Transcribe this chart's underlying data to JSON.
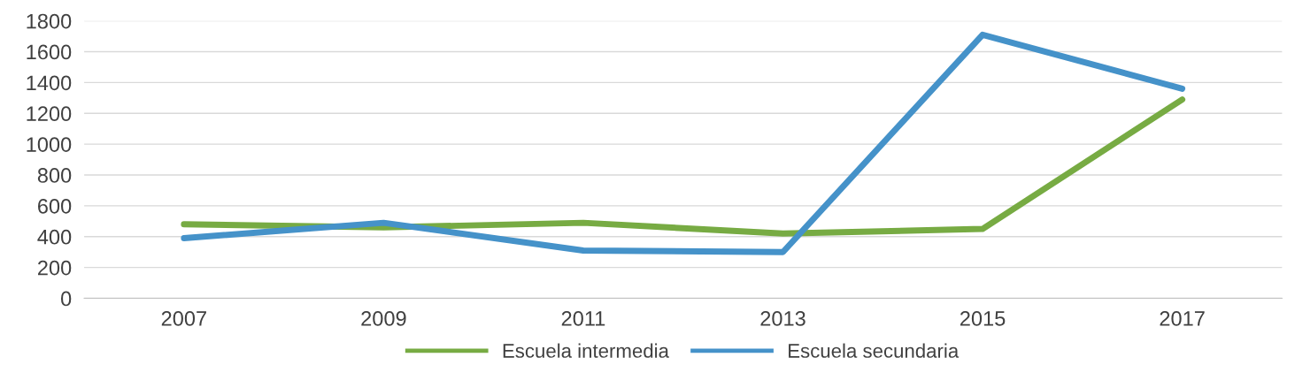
{
  "chart_data": {
    "type": "line",
    "categories": [
      "2007",
      "2009",
      "2011",
      "2013",
      "2015",
      "2017"
    ],
    "series": [
      {
        "name": "Escuela intermedia",
        "color": "#77ab43",
        "values": [
          480,
          460,
          490,
          420,
          450,
          1290
        ]
      },
      {
        "name": "Escuela secundaria",
        "color": "#4592c9",
        "values": [
          390,
          490,
          310,
          300,
          1710,
          1360
        ]
      }
    ],
    "ylim": [
      0,
      1800
    ],
    "yticks": [
      0,
      200,
      400,
      600,
      800,
      1000,
      1200,
      1400,
      1600,
      1800
    ],
    "grid": "y",
    "legend": "bottom",
    "marker": "none",
    "line_style": "solid"
  }
}
